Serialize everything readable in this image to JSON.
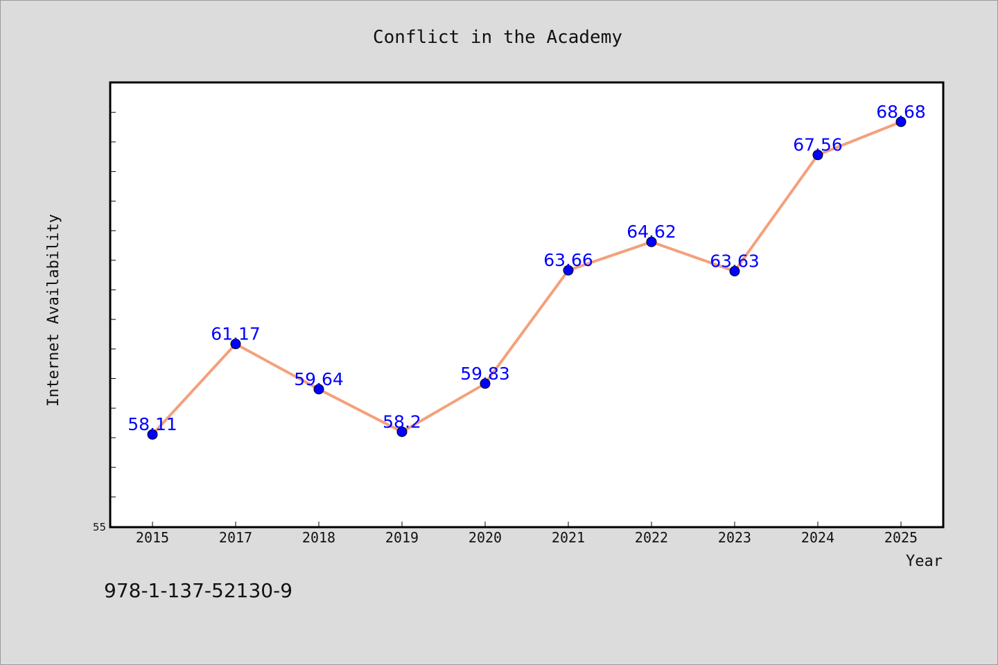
{
  "chart_data": {
    "type": "line",
    "title": "Conflict in the Academy",
    "xlabel": "Year",
    "ylabel": "Internet Availability",
    "categories": [
      "2015",
      "2017",
      "2018",
      "2019",
      "2020",
      "2021",
      "2022",
      "2023",
      "2024",
      "2025"
    ],
    "values": [
      58.11,
      61.17,
      59.64,
      58.2,
      59.83,
      63.66,
      64.62,
      63.63,
      67.56,
      68.68
    ],
    "data_labels": [
      "58.11",
      "61.17",
      "59.64",
      "58.2",
      "59.83",
      "63.66",
      "64.62",
      "63.63",
      "67.56",
      "68.68"
    ],
    "ylim": [
      55,
      70
    ],
    "y_tick_labels": [
      "55"
    ],
    "y_minor_step": 1,
    "grid": false,
    "line_color": "#f4a07a",
    "marker_color": "#0000ff",
    "label_color": "#0000ff",
    "background_color": "#dcdcdc",
    "plot_background_color": "#ffffff"
  },
  "footer": {
    "isbn": "978-1-137-52130-9"
  }
}
